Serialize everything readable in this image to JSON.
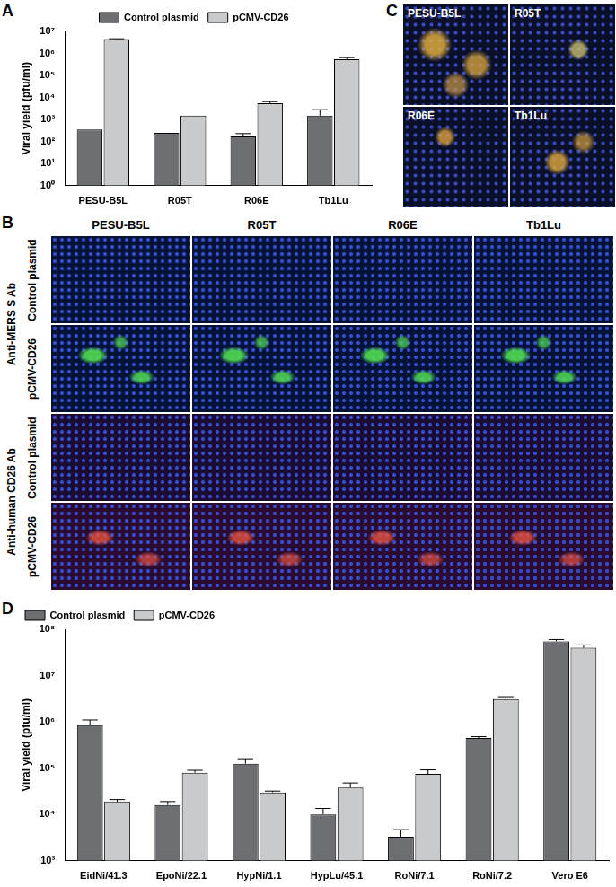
{
  "chart_data": [
    {
      "panel": "A",
      "type": "bar",
      "categories": [
        "PESU-B5L",
        "R05T",
        "R06E",
        "Tb1Lu"
      ],
      "series": [
        {
          "name": "Control plasmid",
          "color": "#6d6e71",
          "values": [
            350,
            250,
            170,
            1500
          ],
          "errors": [
            0,
            0,
            60,
            1300
          ]
        },
        {
          "name": "pCMV-CD26",
          "color": "#c9cacc",
          "values": [
            4500000,
            1500,
            5500,
            550000
          ],
          "errors": [
            150000,
            0,
            1000,
            100000
          ]
        }
      ],
      "y_label": "Viral yield (pfu/ml)",
      "log": "y",
      "ylim": [
        1,
        10000000
      ],
      "yticks": [
        {
          "value": 1,
          "label": "10⁰"
        },
        {
          "value": 10,
          "label": "10¹"
        },
        {
          "value": 100,
          "label": "10²"
        },
        {
          "value": 1000,
          "label": "10³"
        },
        {
          "value": 10000,
          "label": "10⁴"
        },
        {
          "value": 100000,
          "label": "10⁵"
        },
        {
          "value": 1000000,
          "label": "10⁶"
        },
        {
          "value": 10000000,
          "label": "10⁷"
        }
      ],
      "grid": false,
      "legend": "top"
    },
    {
      "panel": "D",
      "type": "bar",
      "categories": [
        "EidNi/41.3",
        "EpoNi/22.1",
        "HypNi/1.1",
        "HypLu/45.1",
        "RoNi/7.1",
        "RoNi/7.2",
        "Vero E6"
      ],
      "series": [
        {
          "name": "Control plasmid",
          "color": "#6d6e71",
          "values": [
            850000,
            16000,
            125000,
            10000,
            3300,
            450000,
            55000000
          ],
          "errors": [
            250000,
            3000,
            35000,
            3500,
            1400,
            30000,
            5000000
          ]
        },
        {
          "name": "pCMV-CD26",
          "color": "#c9cacc",
          "values": [
            19000,
            80000,
            30000,
            38000,
            75000,
            3100000,
            40000000
          ],
          "errors": [
            2000,
            10000,
            2000,
            10000,
            17000,
            400000,
            6000000
          ]
        }
      ],
      "y_label": "Viral yield (pfu/ml)",
      "log": "y",
      "ylim": [
        1000,
        100000000
      ],
      "yticks": [
        {
          "value": 1000,
          "label": "10³"
        },
        {
          "value": 10000,
          "label": "10⁴"
        },
        {
          "value": 100000,
          "label": "10⁵"
        },
        {
          "value": 1000000,
          "label": "10⁶"
        },
        {
          "value": 10000000,
          "label": "10⁷"
        },
        {
          "value": 100000000,
          "label": "10⁸"
        }
      ],
      "grid": false,
      "legend": "top-left"
    }
  ],
  "panel_B": {
    "panel": "B",
    "columns": [
      "PESU-B5L",
      "R05T",
      "R06E",
      "Tb1Lu"
    ],
    "groups": [
      {
        "label": "Anti-MERS S Ab",
        "rows": [
          "Control plasmid",
          "pCMV-CD26"
        ]
      },
      {
        "label": "Anti-human CD26 Ab",
        "rows": [
          "Control plasmid",
          "pCMV-CD26"
        ]
      }
    ]
  },
  "panel_C": {
    "panel": "C",
    "images": [
      "PESU-B5L",
      "R05T",
      "R06E",
      "Tb1Lu"
    ]
  }
}
